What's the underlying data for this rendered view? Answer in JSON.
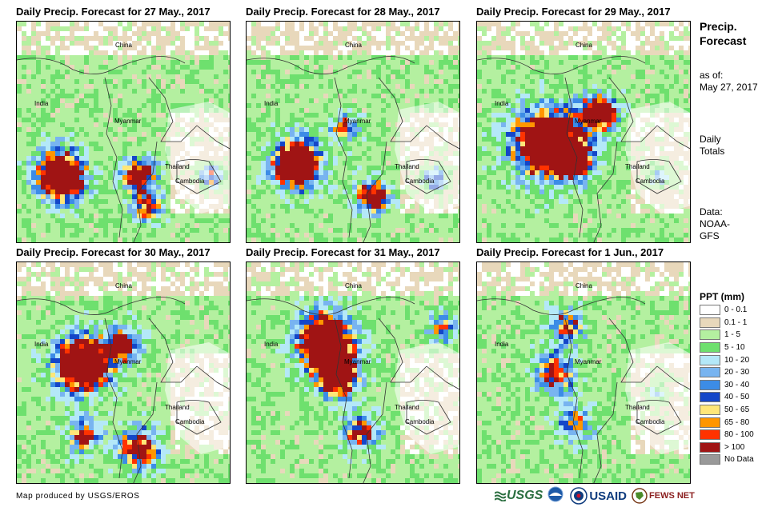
{
  "panels": [
    {
      "title": "Daily Precip. Forecast for 27 May., 2017",
      "scenario": 0
    },
    {
      "title": "Daily Precip. Forecast for 28 May., 2017",
      "scenario": 1
    },
    {
      "title": "Daily Precip. Forecast for 29 May., 2017",
      "scenario": 2
    },
    {
      "title": "Daily Precip. Forecast for 30 May., 2017",
      "scenario": 3
    },
    {
      "title": "Daily Precip. Forecast for 31 May., 2017",
      "scenario": 4
    },
    {
      "title": "Daily Precip. Forecast for 1 Jun., 2017",
      "scenario": 5
    }
  ],
  "country_labels": {
    "china": "China",
    "india": "India",
    "myanmar": "Myanmar",
    "thailand": "Thailand",
    "cambodia": "Cambodia"
  },
  "side": {
    "title_line1": "Precip.",
    "title_line2": "Forecast",
    "asof_line1": "as of:",
    "asof_line2": "May 27, 2017",
    "daily_line1": "Daily",
    "daily_line2": "Totals",
    "data_line1": "Data:",
    "data_line2": "NOAA-",
    "data_line3": "GFS"
  },
  "legend": {
    "title": "PPT (mm)",
    "items": [
      {
        "label": "0 - 0.1",
        "color": "#ffffff"
      },
      {
        "label": "0.1 - 1",
        "color": "#e8d8bb"
      },
      {
        "label": "1 - 5",
        "color": "#b4f0a0"
      },
      {
        "label": "5 - 10",
        "color": "#6ee06e"
      },
      {
        "label": "10 - 20",
        "color": "#b4e8f8"
      },
      {
        "label": "20 - 30",
        "color": "#78b4f0"
      },
      {
        "label": "30 - 40",
        "color": "#3c8ce6"
      },
      {
        "label": "40 - 50",
        "color": "#1446c8"
      },
      {
        "label": "50 - 65",
        "color": "#ffe678"
      },
      {
        "label": "65 - 80",
        "color": "#ff9600"
      },
      {
        "label": "80 - 100",
        "color": "#ff3200"
      },
      {
        "label": "> 100",
        "color": "#a01414"
      },
      {
        "label": "No Data",
        "color": "#999999"
      }
    ]
  },
  "credit": "Map produced by USGS/EROS",
  "logos": {
    "usgs": "USGS",
    "usaid": "USAID",
    "fewsnet": "FEWS NET"
  }
}
